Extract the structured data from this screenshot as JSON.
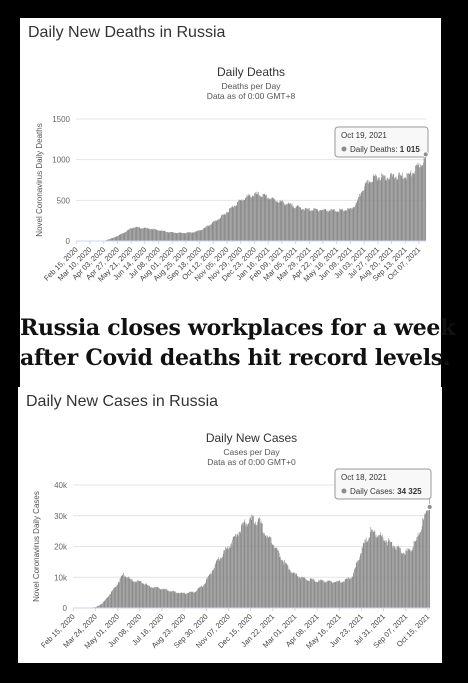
{
  "headline": {
    "line1": "Russia closes workplaces for a week",
    "line2": "after Covid deaths hit record levels."
  },
  "chart_data": [
    {
      "type": "bar",
      "panel_title": "Daily New Deaths in Russia",
      "title": "Daily Deaths",
      "subtitle_line1": "Deaths per Day",
      "subtitle_line2": "Data as of 0:00 GMT+8",
      "ylabel": "Novel Coronavirus Daily Deaths",
      "ylim": [
        0,
        1500
      ],
      "yticks": [
        0,
        500,
        1000,
        1500
      ],
      "x_start": "2020-02-15",
      "x_end": "2021-10-19",
      "xtick_labels": [
        "Feb 15, 2020",
        "Mar 10, 2020",
        "Apr 03, 2020",
        "Apr 27, 2020",
        "May 21, 2020",
        "Jun 14, 2020",
        "Jul 08, 2020",
        "Aug 01, 2020",
        "Aug 25, 2020",
        "Sep 18, 2020",
        "Oct 12, 2020",
        "Nov 05, 2020",
        "Nov 29, 2020",
        "Dec 23, 2020",
        "Jan 16, 2021",
        "Feb 09, 2021",
        "Mar 05, 2021",
        "Mar 29, 2021",
        "Apr 22, 2021",
        "May 16, 2021",
        "Jun 09, 2021",
        "Jul 03, 2021",
        "Jul 27, 2021",
        "Aug 20, 2021",
        "Sep 13, 2021",
        "Oct 07, 2021"
      ],
      "trend": [
        [
          "2020-02-15",
          0
        ],
        [
          "2020-03-20",
          0
        ],
        [
          "2020-04-05",
          5
        ],
        [
          "2020-04-20",
          40
        ],
        [
          "2020-05-05",
          90
        ],
        [
          "2020-05-25",
          170
        ],
        [
          "2020-06-10",
          160
        ],
        [
          "2020-06-25",
          150
        ],
        [
          "2020-07-10",
          130
        ],
        [
          "2020-07-25",
          110
        ],
        [
          "2020-08-10",
          100
        ],
        [
          "2020-08-25",
          100
        ],
        [
          "2020-09-10",
          110
        ],
        [
          "2020-09-25",
          150
        ],
        [
          "2020-10-10",
          220
        ],
        [
          "2020-10-25",
          290
        ],
        [
          "2020-11-10",
          390
        ],
        [
          "2020-11-25",
          480
        ],
        [
          "2020-12-10",
          540
        ],
        [
          "2020-12-25",
          575
        ],
        [
          "2021-01-08",
          555
        ],
        [
          "2021-01-25",
          510
        ],
        [
          "2021-02-10",
          475
        ],
        [
          "2021-02-25",
          440
        ],
        [
          "2021-03-10",
          415
        ],
        [
          "2021-03-25",
          385
        ],
        [
          "2021-04-10",
          385
        ],
        [
          "2021-04-25",
          380
        ],
        [
          "2021-05-10",
          375
        ],
        [
          "2021-05-25",
          375
        ],
        [
          "2021-06-10",
          390
        ],
        [
          "2021-06-20",
          460
        ],
        [
          "2021-06-30",
          630
        ],
        [
          "2021-07-10",
          720
        ],
        [
          "2021-07-20",
          780
        ],
        [
          "2021-07-31",
          790
        ],
        [
          "2021-08-15",
          790
        ],
        [
          "2021-08-31",
          795
        ],
        [
          "2021-09-15",
          800
        ],
        [
          "2021-09-25",
          830
        ],
        [
          "2021-10-05",
          910
        ],
        [
          "2021-10-12",
          960
        ],
        [
          "2021-10-19",
          1015
        ]
      ],
      "tooltip": {
        "date": "Oct 19, 2021",
        "label": "Daily Deaths:",
        "value": "1 015"
      }
    },
    {
      "type": "bar",
      "panel_title": "Daily New Cases in Russia",
      "title": "Daily New Cases",
      "subtitle_line1": "Cases per Day",
      "subtitle_line2": "Data as of 0:00 GMT+0",
      "ylabel": "Novel Coronavirus Daily Cases",
      "ylim": [
        0,
        40000
      ],
      "yticks": [
        0,
        10000,
        20000,
        30000,
        40000
      ],
      "ytick_labels": [
        "0",
        "10k",
        "20k",
        "30k",
        "40k"
      ],
      "x_start": "2020-02-15",
      "x_end": "2021-10-18",
      "xtick_labels": [
        "Feb 15, 2020",
        "Mar 24, 2020",
        "May 01, 2020",
        "Jun 08, 2020",
        "Jul 16, 2020",
        "Aug 23, 2020",
        "Sep 30, 2020",
        "Nov 07, 2020",
        "Dec 15, 2020",
        "Jan 22, 2021",
        "Mar 01, 2021",
        "Apr 08, 2021",
        "May 16, 2021",
        "Jun 23, 2021",
        "Jul 31, 2021",
        "Sep 07, 2021",
        "Oct 15, 2021"
      ],
      "trend": [
        [
          "2020-02-15",
          0
        ],
        [
          "2020-03-10",
          0
        ],
        [
          "2020-03-25",
          300
        ],
        [
          "2020-04-05",
          1500
        ],
        [
          "2020-04-20",
          5000
        ],
        [
          "2020-05-01",
          8000
        ],
        [
          "2020-05-11",
          11000
        ],
        [
          "2020-05-25",
          9000
        ],
        [
          "2020-06-10",
          8500
        ],
        [
          "2020-06-25",
          7000
        ],
        [
          "2020-07-10",
          6500
        ],
        [
          "2020-07-25",
          5800
        ],
        [
          "2020-08-10",
          5100
        ],
        [
          "2020-08-25",
          4800
        ],
        [
          "2020-09-10",
          5300
        ],
        [
          "2020-09-25",
          7500
        ],
        [
          "2020-10-05",
          10500
        ],
        [
          "2020-10-20",
          15500
        ],
        [
          "2020-11-05",
          19500
        ],
        [
          "2020-11-20",
          23500
        ],
        [
          "2020-12-05",
          27500
        ],
        [
          "2020-12-20",
          29000
        ],
        [
          "2020-12-30",
          28000
        ],
        [
          "2021-01-10",
          24000
        ],
        [
          "2021-01-25",
          20000
        ],
        [
          "2021-02-10",
          15000
        ],
        [
          "2021-02-25",
          11500
        ],
        [
          "2021-03-15",
          9500
        ],
        [
          "2021-04-01",
          9000
        ],
        [
          "2021-04-20",
          8700
        ],
        [
          "2021-05-10",
          8500
        ],
        [
          "2021-05-25",
          8800
        ],
        [
          "2021-06-08",
          10500
        ],
        [
          "2021-06-18",
          16000
        ],
        [
          "2021-06-28",
          21000
        ],
        [
          "2021-07-09",
          25000
        ],
        [
          "2021-07-20",
          24000
        ],
        [
          "2021-08-05",
          22000
        ],
        [
          "2021-08-20",
          20000
        ],
        [
          "2021-09-05",
          18000
        ],
        [
          "2021-09-15",
          19000
        ],
        [
          "2021-09-25",
          22000
        ],
        [
          "2021-10-05",
          27000
        ],
        [
          "2021-10-12",
          31000
        ],
        [
          "2021-10-18",
          34325
        ]
      ],
      "tooltip": {
        "date": "Oct 18, 2021",
        "label": "Daily Cases:",
        "value": "34 325"
      }
    }
  ]
}
